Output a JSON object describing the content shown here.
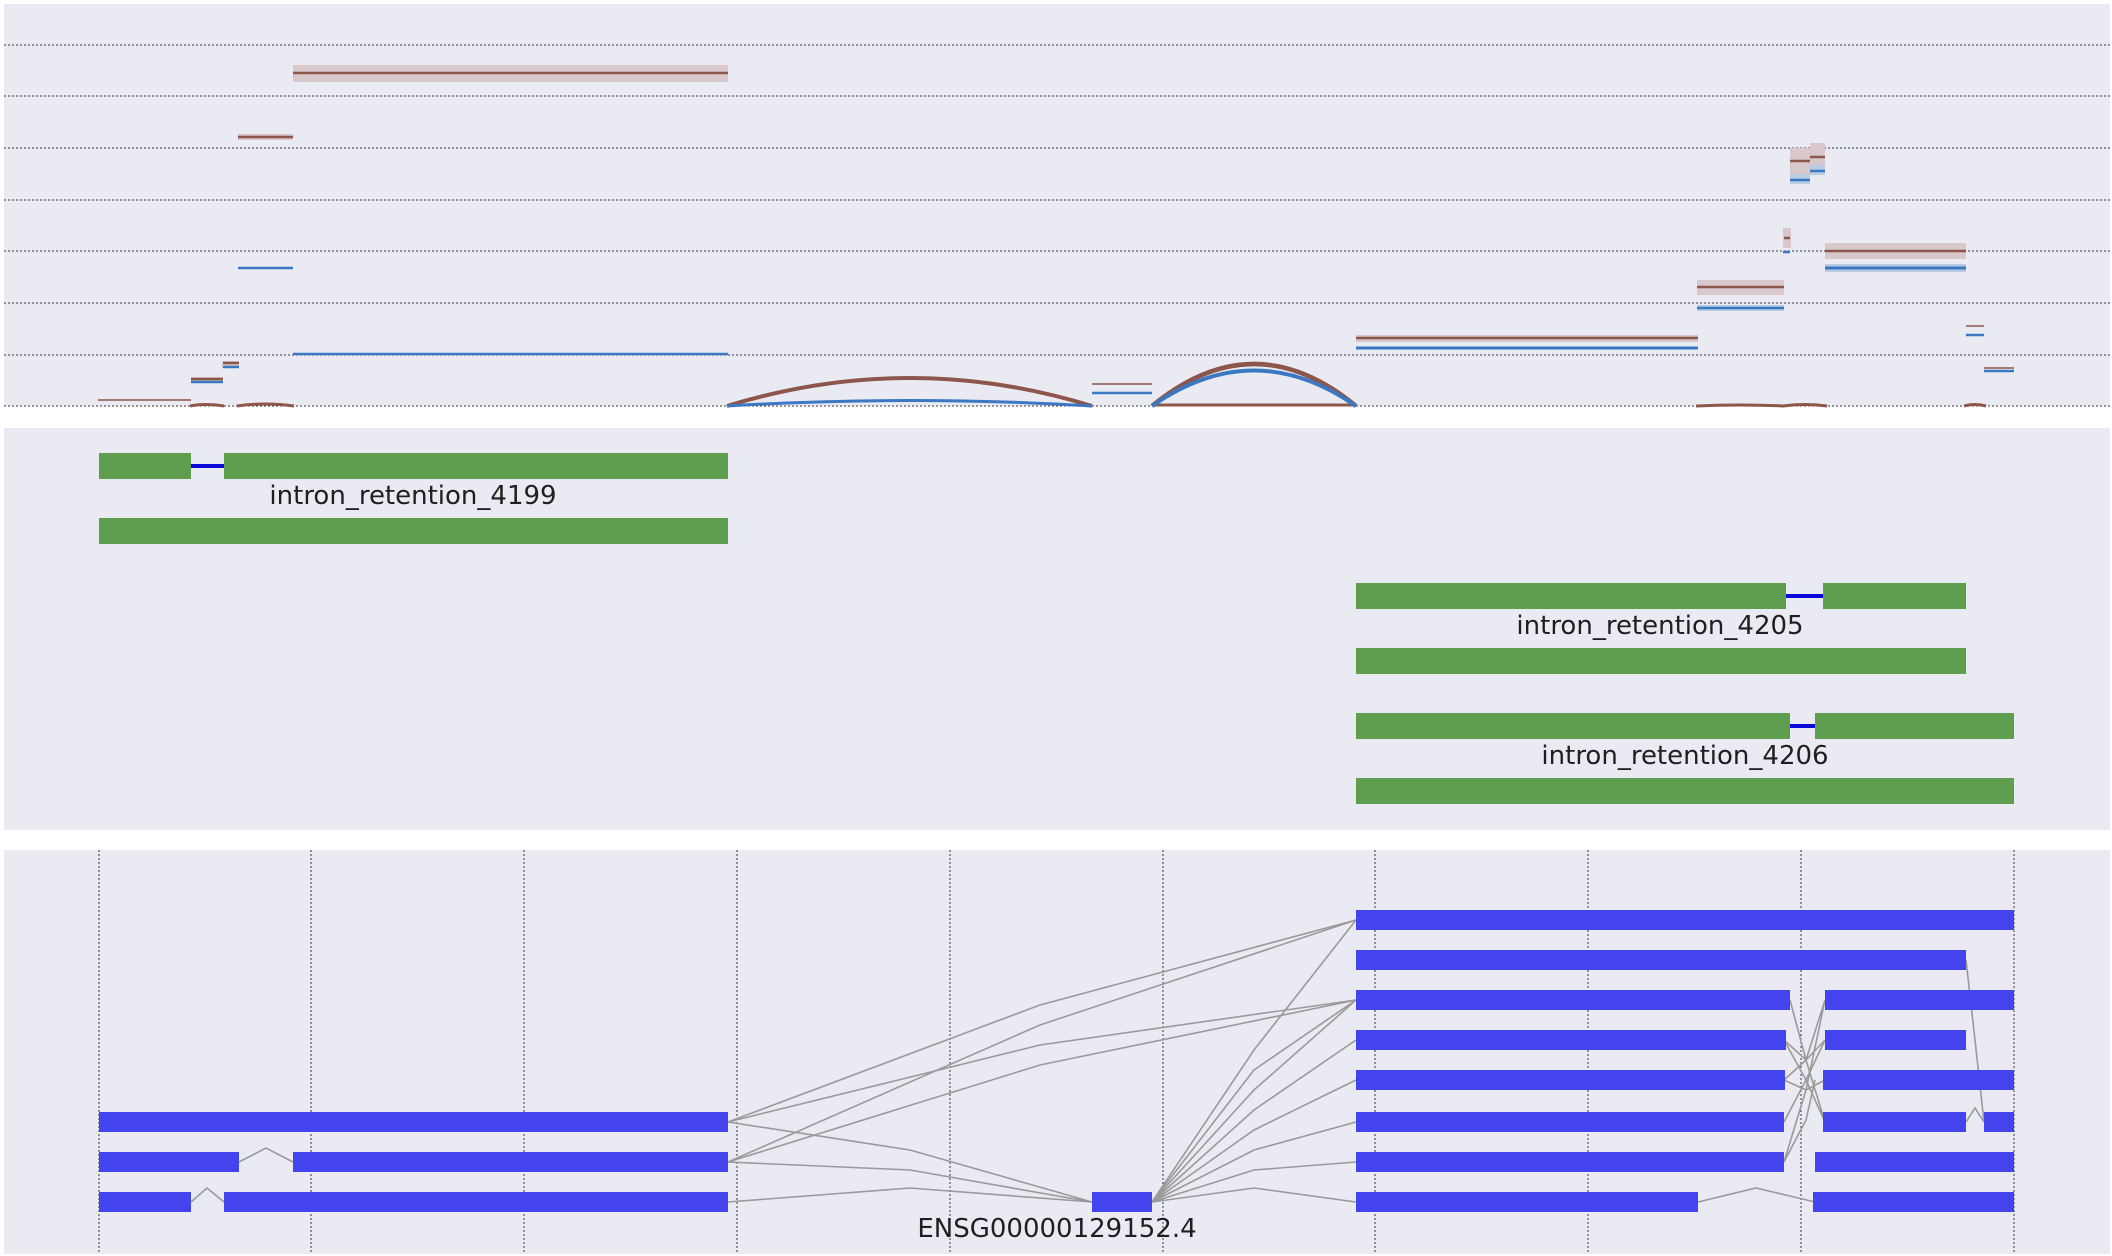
{
  "panels": {
    "background": "#eaeaf2",
    "grid_color": "#3a3a3a"
  },
  "colors": {
    "feature_box": "#5f9e4f",
    "intron_line": "#0a0ad8",
    "transcript_box": "#4444ee",
    "junction_line": "#9a9a9a",
    "series_brown": "#8c564b",
    "series_blue": "#3a78c2",
    "series_brown_band": "#d8c8cc",
    "series_blue_band": "#b8cde2"
  },
  "features": [
    {
      "label": "intron_retention_4199"
    },
    {
      "label": "intron_retention_4205"
    },
    {
      "label": "intron_retention_4206"
    }
  ],
  "gene": {
    "label": "ENSG00000129152.4"
  }
}
